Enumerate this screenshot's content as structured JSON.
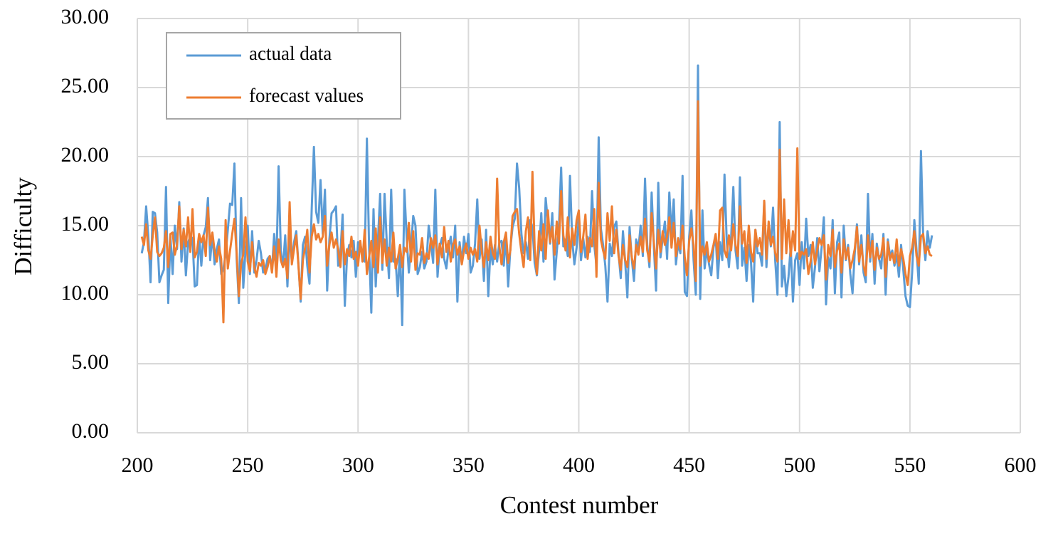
{
  "chart_data": {
    "type": "line",
    "xlabel": "Contest number",
    "ylabel": "Difficulty",
    "xlim": [
      200,
      600
    ],
    "xticks": [
      200,
      250,
      300,
      350,
      400,
      450,
      500,
      550,
      600
    ],
    "ylim": [
      0,
      30
    ],
    "yticks": [
      {
        "value": 0,
        "label": "0.00"
      },
      {
        "value": 5,
        "label": "5.00"
      },
      {
        "value": 10,
        "label": "10.00"
      },
      {
        "value": 15,
        "label": "15.00"
      },
      {
        "value": 20,
        "label": "20.00"
      },
      {
        "value": 25,
        "label": "25.00"
      },
      {
        "value": 30,
        "label": "30.00"
      }
    ],
    "grid": true,
    "legend": "upper left",
    "x": [
      202,
      203,
      204,
      205,
      206,
      207,
      208,
      209,
      210,
      211,
      212,
      213,
      214,
      215,
      216,
      217,
      218,
      219,
      220,
      221,
      222,
      223,
      224,
      225,
      226,
      227,
      228,
      229,
      230,
      231,
      232,
      233,
      234,
      235,
      236,
      237,
      238,
      239,
      240,
      241,
      242,
      243,
      244,
      245,
      246,
      247,
      248,
      249,
      250,
      251,
      252,
      253,
      254,
      255,
      256,
      257,
      258,
      259,
      260,
      261,
      262,
      263,
      264,
      265,
      266,
      267,
      268,
      269,
      270,
      271,
      272,
      273,
      274,
      275,
      276,
      277,
      278,
      279,
      280,
      281,
      282,
      283,
      284,
      285,
      286,
      287,
      288,
      289,
      290,
      291,
      292,
      293,
      294,
      295,
      296,
      297,
      298,
      299,
      300,
      301,
      302,
      303,
      304,
      305,
      306,
      307,
      308,
      309,
      310,
      311,
      312,
      313,
      314,
      315,
      316,
      317,
      318,
      319,
      320,
      321,
      322,
      323,
      324,
      325,
      326,
      327,
      328,
      329,
      330,
      331,
      332,
      333,
      334,
      335,
      336,
      337,
      338,
      339,
      340,
      341,
      342,
      343,
      344,
      345,
      346,
      347,
      348,
      349,
      350,
      351,
      352,
      353,
      354,
      355,
      356,
      357,
      358,
      359,
      360,
      361,
      362,
      363,
      364,
      365,
      366,
      367,
      368,
      369,
      370,
      371,
      372,
      373,
      374,
      375,
      376,
      377,
      378,
      379,
      380,
      381,
      382,
      383,
      384,
      385,
      386,
      387,
      388,
      389,
      390,
      391,
      392,
      393,
      394,
      395,
      396,
      397,
      398,
      399,
      400,
      401,
      402,
      403,
      404,
      405,
      406,
      407,
      408,
      409,
      410,
      411,
      412,
      413,
      414,
      415,
      416,
      417,
      418,
      419,
      420,
      421,
      422,
      423,
      424,
      425,
      426,
      427,
      428,
      429,
      430,
      431,
      432,
      433,
      434,
      435,
      436,
      437,
      438,
      439,
      440,
      441,
      442,
      443,
      444,
      445,
      446,
      447,
      448,
      449,
      450,
      451,
      452,
      453,
      454,
      455,
      456,
      457,
      458,
      459,
      460,
      461,
      462,
      463,
      464,
      465,
      466,
      467,
      468,
      469,
      470,
      471,
      472,
      473,
      474,
      475,
      476,
      477,
      478,
      479,
      480,
      481,
      482,
      483,
      484,
      485,
      486,
      487,
      488,
      489,
      490,
      491,
      492,
      493,
      494,
      495,
      496,
      497,
      498,
      499,
      500,
      501,
      502,
      503,
      504,
      505,
      506,
      507,
      508,
      509,
      510,
      511,
      512,
      513,
      514,
      515,
      516,
      517,
      518,
      519,
      520,
      521,
      522,
      523,
      524,
      525,
      526,
      527,
      528,
      529,
      530,
      531,
      532,
      533,
      534,
      535,
      536,
      537,
      538,
      539,
      540,
      541,
      542,
      543,
      544,
      545,
      546,
      547,
      548,
      549,
      550,
      551,
      552,
      553,
      554,
      555,
      556,
      557,
      558,
      559,
      560
    ],
    "series": [
      {
        "name": "actual data",
        "color": "#5b9bd5",
        "values": [
          13.0,
          13.8,
          16.4,
          14.2,
          10.9,
          16.0,
          15.9,
          14.5,
          10.9,
          11.4,
          11.8,
          17.8,
          9.4,
          14.2,
          11.5,
          15.0,
          13.3,
          16.7,
          12.4,
          14.8,
          11.4,
          13.8,
          14.2,
          14.1,
          10.6,
          10.7,
          14.3,
          12.1,
          14.3,
          14.9,
          17.0,
          12.5,
          14.4,
          12.2,
          13.3,
          14.0,
          11.5,
          11.9,
          12.9,
          14.7,
          16.6,
          16.5,
          19.5,
          12.6,
          9.4,
          17.0,
          10.5,
          13.2,
          15.0,
          11.5,
          14.6,
          11.6,
          12.5,
          13.9,
          13.0,
          11.6,
          11.8,
          12.6,
          12.8,
          11.8,
          14.4,
          12.1,
          19.3,
          13.2,
          12.0,
          14.3,
          10.6,
          14.5,
          12.4,
          13.8,
          14.6,
          12.2,
          9.5,
          13.6,
          14.2,
          12.1,
          10.8,
          16.2,
          20.7,
          16.0,
          15.2,
          18.3,
          14.4,
          17.6,
          10.3,
          14.0,
          15.9,
          16.1,
          16.4,
          12.1,
          13.0,
          15.8,
          9.2,
          12.8,
          13.6,
          12.7,
          13.9,
          11.3,
          13.8,
          13.7,
          12.9,
          12.4,
          21.3,
          13.4,
          8.7,
          16.2,
          10.6,
          13.9,
          17.3,
          11.8,
          17.3,
          13.8,
          11.2,
          17.6,
          12.4,
          12.6,
          9.9,
          13.5,
          7.8,
          17.6,
          14.2,
          11.6,
          13.5,
          15.7,
          15.0,
          11.5,
          12.0,
          13.1,
          11.9,
          12.4,
          15.0,
          13.8,
          12.3,
          17.6,
          11.3,
          13.5,
          14.1,
          12.6,
          11.9,
          13.4,
          14.2,
          12.7,
          15.0,
          9.5,
          13.8,
          12.3,
          14.2,
          13.0,
          14.4,
          11.6,
          12.1,
          13.7,
          16.9,
          12.6,
          14.0,
          11.0,
          14.7,
          9.9,
          13.4,
          12.2,
          13.6,
          12.4,
          13.8,
          13.9,
          12.1,
          14.2,
          10.6,
          13.4,
          14.9,
          15.5,
          19.5,
          17.7,
          14.4,
          13.0,
          13.8,
          12.6,
          15.4,
          14.9,
          12.3,
          11.4,
          13.2,
          15.9,
          12.4,
          17.0,
          15.2,
          13.7,
          15.9,
          11.1,
          13.1,
          14.9,
          19.2,
          13.5,
          14.0,
          12.8,
          18.6,
          14.0,
          12.2,
          13.4,
          15.6,
          12.5,
          14.1,
          12.7,
          14.2,
          13.1,
          17.5,
          13.6,
          12.1,
          21.4,
          14.8,
          13.6,
          12.1,
          9.5,
          13.7,
          12.8,
          14.9,
          15.3,
          13.0,
          11.2,
          14.6,
          12.4,
          9.8,
          14.9,
          12.6,
          11.0,
          14.0,
          13.3,
          15.0,
          12.8,
          18.4,
          13.6,
          12.0,
          17.4,
          13.5,
          10.3,
          18.1,
          12.7,
          14.1,
          15.3,
          12.6,
          17.4,
          14.4,
          16.9,
          12.2,
          13.7,
          13.0,
          18.6,
          10.2,
          9.9,
          14.2,
          16.1,
          12.5,
          10.0,
          26.6,
          9.7,
          16.1,
          11.9,
          13.3,
          12.2,
          11.4,
          13.4,
          14.2,
          11.2,
          13.8,
          12.5,
          18.7,
          13.9,
          12.0,
          14.1,
          17.8,
          13.2,
          11.9,
          18.5,
          12.1,
          13.4,
          11.0,
          13.6,
          12.4,
          9.5,
          14.7,
          13.0,
          13.0,
          12.1,
          16.7,
          12.0,
          15.1,
          13.5,
          16.3,
          12.4,
          10.0,
          22.5,
          10.6,
          12.1,
          9.9,
          11.3,
          13.5,
          9.5,
          12.5,
          13.0,
          10.7,
          13.8,
          11.9,
          15.5,
          12.8,
          13.6,
          10.5,
          12.0,
          14.1,
          11.7,
          13.4,
          15.6,
          9.3,
          12.7,
          11.9,
          15.4,
          10.1,
          13.8,
          14.5,
          9.8,
          15.0,
          12.5,
          13.6,
          11.5,
          10.1,
          13.0,
          15.1,
          12.2,
          14.3,
          11.6,
          10.9,
          17.3,
          12.4,
          14.4,
          10.8,
          13.7,
          12.6,
          11.9,
          14.4,
          10.0,
          14.0,
          12.8,
          13.2,
          12.1,
          12.9,
          11.3,
          13.6,
          11.8,
          9.9,
          9.2,
          9.1,
          11.6,
          15.4,
          13.2,
          10.8,
          20.4,
          14.2,
          12.5,
          14.6,
          13.4,
          14.3
        ]
      },
      {
        "name": "forecast values",
        "color": "#ed7d31",
        "values": [
          14.2,
          13.6,
          15.1,
          13.2,
          12.6,
          14.3,
          15.6,
          13.1,
          12.8,
          13.0,
          13.4,
          14.6,
          12.0,
          14.4,
          14.5,
          12.9,
          13.6,
          16.4,
          13.3,
          14.7,
          13.5,
          15.6,
          13.1,
          16.2,
          12.7,
          13.1,
          14.4,
          13.8,
          14.3,
          12.8,
          16.3,
          13.6,
          14.5,
          13.2,
          12.4,
          13.5,
          12.6,
          8.0,
          15.4,
          11.9,
          13.2,
          14.4,
          15.5,
          13.0,
          9.9,
          12.2,
          12.9,
          15.6,
          12.4,
          11.7,
          13.8,
          12.0,
          11.3,
          12.3,
          12.1,
          12.5,
          11.5,
          12.0,
          12.8,
          11.6,
          13.5,
          11.3,
          14.0,
          12.5,
          12.0,
          12.6,
          11.2,
          16.7,
          12.2,
          13.3,
          14.3,
          12.1,
          9.7,
          12.5,
          13.4,
          14.7,
          11.6,
          14.2,
          15.1,
          14.0,
          14.4,
          13.8,
          14.2,
          15.7,
          12.1,
          13.6,
          14.5,
          13.4,
          14.0,
          13.3,
          12.0,
          14.6,
          12.2,
          13.3,
          12.8,
          14.2,
          12.6,
          13.1,
          12.1,
          13.9,
          12.4,
          14.7,
          11.5,
          12.7,
          13.9,
          12.0,
          14.8,
          11.6,
          15.6,
          12.3,
          14.0,
          12.1,
          13.4,
          12.4,
          14.5,
          11.9,
          12.6,
          13.6,
          12.0,
          13.4,
          13.1,
          15.2,
          12.4,
          14.6,
          11.8,
          13.0,
          12.9,
          14.1,
          12.3,
          13.0,
          12.6,
          14.1,
          13.4,
          14.3,
          12.2,
          13.7,
          12.7,
          14.9,
          13.1,
          13.9,
          12.4,
          13.6,
          14.0,
          12.9,
          13.5,
          12.2,
          13.2,
          13.7,
          12.6,
          13.4,
          12.9,
          13.3,
          12.4,
          15.0,
          13.2,
          12.0,
          13.8,
          12.5,
          14.2,
          13.0,
          12.6,
          18.4,
          13.5,
          12.2,
          13.8,
          14.5,
          12.3,
          13.2,
          15.7,
          16.0,
          16.2,
          14.4,
          13.1,
          12.0,
          14.6,
          15.6,
          12.5,
          18.9,
          13.4,
          11.5,
          14.6,
          13.2,
          15.1,
          12.6,
          16.1,
          13.8,
          14.9,
          12.9,
          15.3,
          13.7,
          17.5,
          14.3,
          13.2,
          15.6,
          12.7,
          14.8,
          13.6,
          15.4,
          16.1,
          13.1,
          14.2,
          15.8,
          12.6,
          14.1,
          13.5,
          16.2,
          11.3,
          18.1,
          14.0,
          13.2,
          12.6,
          15.9,
          13.9,
          16.4,
          13.0,
          14.7,
          12.8,
          11.8,
          13.6,
          12.5,
          12.0,
          14.3,
          12.7,
          11.9,
          13.6,
          12.9,
          14.2,
          13.1,
          15.5,
          13.2,
          12.4,
          15.9,
          13.8,
          11.9,
          14.7,
          13.1,
          14.6,
          13.6,
          14.2,
          15.6,
          13.4,
          15.2,
          12.8,
          14.1,
          13.3,
          15.0,
          12.7,
          11.4,
          13.9,
          14.8,
          13.6,
          11.0,
          24.0,
          12.1,
          13.5,
          12.9,
          13.8,
          12.4,
          12.9,
          13.6,
          14.4,
          12.6,
          16.1,
          16.3,
          13.2,
          12.7,
          14.3,
          13.2,
          15.1,
          13.6,
          12.8,
          16.4,
          13.7,
          14.6,
          12.3,
          15.0,
          13.1,
          12.4,
          14.7,
          13.5,
          14.1,
          12.9,
          16.8,
          12.6,
          15.3,
          13.6,
          14.2,
          13.0,
          12.4,
          20.5,
          12.6,
          16.9,
          13.0,
          15.4,
          12.8,
          14.6,
          13.2,
          20.6,
          12.6,
          13.1,
          12.9,
          13.3,
          11.5,
          12.4,
          13.8,
          12.2,
          13.2,
          14.1,
          13.6,
          14.3,
          11.1,
          13.6,
          12.8,
          14.7,
          12.0,
          13.2,
          13.7,
          11.6,
          14.0,
          12.6,
          13.4,
          11.9,
          12.5,
          13.3,
          14.9,
          12.4,
          13.6,
          12.1,
          11.4,
          14.3,
          12.7,
          13.9,
          11.8,
          13.4,
          12.6,
          12.9,
          14.1,
          11.3,
          13.8,
          12.5,
          13.0,
          12.3,
          14.0,
          12.1,
          13.3,
          12.6,
          11.5,
          10.7,
          12.8,
          13.4,
          14.6,
          12.8,
          12.1,
          14.2,
          14.4,
          13.0,
          13.5,
          12.9,
          12.8
        ]
      }
    ]
  }
}
